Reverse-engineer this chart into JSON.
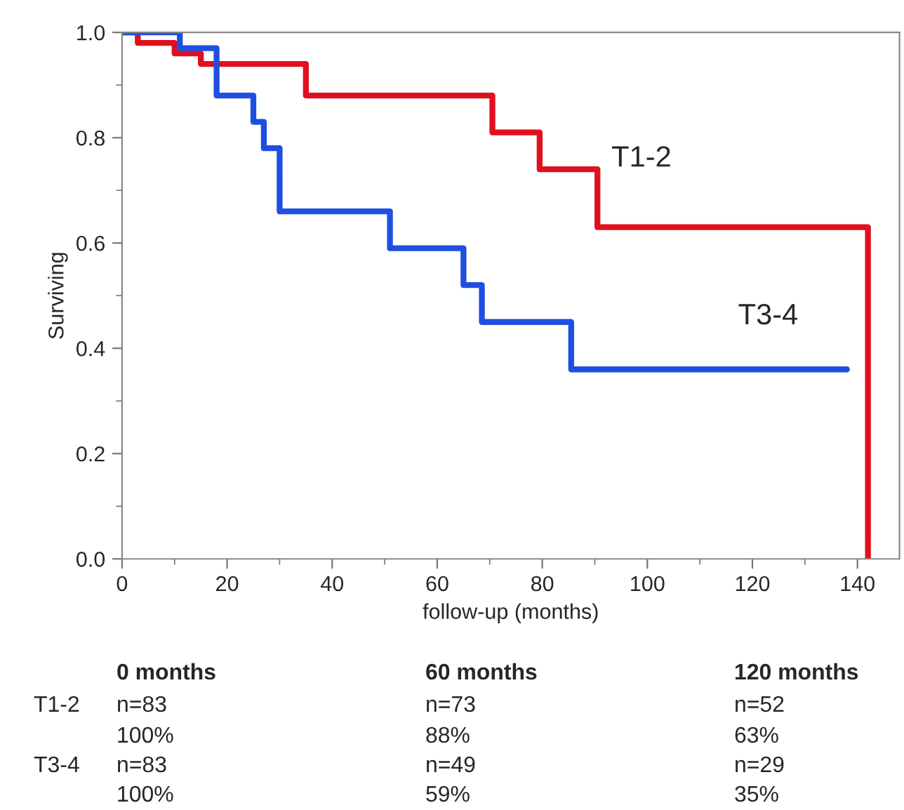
{
  "chart_data": {
    "type": "step",
    "xlabel": "follow-up (months)",
    "ylabel": "Surviving",
    "xlim": [
      0,
      148
    ],
    "xticks": [
      0,
      20,
      40,
      60,
      80,
      100,
      120,
      140
    ],
    "ylim": [
      0,
      1.0
    ],
    "yticks": [
      {
        "value": 0,
        "label": "0.0"
      },
      0.2,
      0.4,
      0.6,
      0.8,
      {
        "value": 1.0,
        "label": "1.0"
      }
    ],
    "grid": false,
    "legend": false,
    "line_style": "solid",
    "marker": "none",
    "series": [
      {
        "name": "T1-2",
        "color": "#e0101e",
        "x": [
          0,
          3,
          10,
          15,
          35,
          70.5,
          79.5,
          90.5,
          142
        ],
        "values": [
          1.0,
          0.98,
          0.96,
          0.94,
          0.88,
          0.81,
          0.74,
          0.63,
          0
        ]
      },
      {
        "name": "T3-4",
        "color": "#1f4fe0",
        "x": [
          0,
          11,
          18,
          25,
          27,
          30,
          51,
          65,
          68.5,
          85.5,
          138
        ],
        "values": [
          1.0,
          0.97,
          0.88,
          0.83,
          0.78,
          0.66,
          0.59,
          0.52,
          0.45,
          0.36,
          0.36
        ]
      }
    ],
    "annotations": [
      "0 months",
      "60 months",
      "120 months",
      "T1-2",
      "n=83",
      "n=73",
      "n=52",
      "100%",
      "88%",
      "63%",
      "T3-4",
      "n=83",
      "n=49",
      "n=29",
      "100%",
      "59%",
      "35%"
    ]
  }
}
